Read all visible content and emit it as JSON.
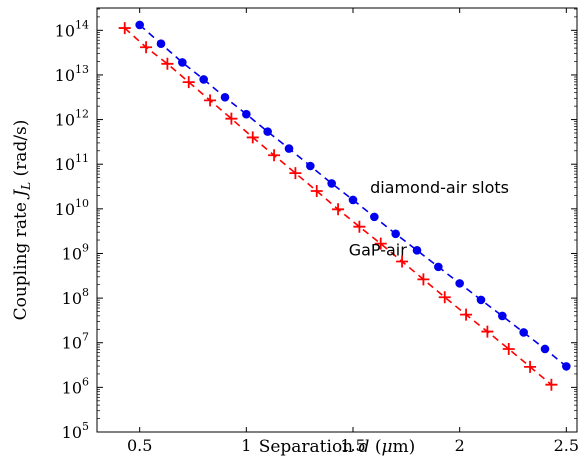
{
  "chart_data": {
    "type": "scatter",
    "x_scale": "linear",
    "y_scale": "log",
    "xlabel": "Separation d (μm)",
    "ylabel": "Coupling rate J_L (rad/s)",
    "xlim": [
      0.3,
      2.55
    ],
    "ylim_log10": [
      5,
      14.5
    ],
    "x_ticks": [
      0.5,
      1,
      1.5,
      2,
      2.5
    ],
    "x_tick_labels": [
      "0.5",
      "1",
      "1.5",
      "2",
      "2.5"
    ],
    "y_ticks_log10": [
      5,
      6,
      7,
      8,
      9,
      10,
      11,
      12,
      13,
      14
    ],
    "grid": false,
    "box": true,
    "series": [
      {
        "name": "diamond-air slots",
        "marker": "dot",
        "line": "dashed",
        "color": "#0000ee",
        "x": [
          0.5,
          0.6,
          0.7,
          0.8,
          0.9,
          1.0,
          1.1,
          1.2,
          1.3,
          1.4,
          1.5,
          1.6,
          1.7,
          1.8,
          1.9,
          2.0,
          2.1,
          2.2,
          2.3,
          2.4,
          2.5
        ],
        "log10_y": [
          14.12,
          13.7,
          13.28,
          12.9,
          12.5,
          12.12,
          11.73,
          11.35,
          10.96,
          10.57,
          10.2,
          9.82,
          9.44,
          9.07,
          8.7,
          8.33,
          7.96,
          7.6,
          7.23,
          6.86,
          6.47
        ]
      },
      {
        "name": "GaP-air",
        "marker": "plus",
        "line": "dashed",
        "color": "#ff0000",
        "x": [
          0.43,
          0.53,
          0.63,
          0.73,
          0.83,
          0.93,
          1.03,
          1.13,
          1.23,
          1.33,
          1.43,
          1.53,
          1.63,
          1.73,
          1.83,
          1.93,
          2.03,
          2.13,
          2.23,
          2.33,
          2.43
        ],
        "log10_y": [
          14.05,
          13.62,
          13.25,
          12.84,
          12.43,
          12.02,
          11.6,
          11.2,
          10.8,
          10.4,
          9.99,
          9.6,
          9.22,
          8.82,
          8.42,
          8.02,
          7.63,
          7.25,
          6.86,
          6.46,
          6.06
        ]
      }
    ],
    "annotations": [
      {
        "text": "diamond-air slots",
        "x": 1.58,
        "log10_y": 10.35
      },
      {
        "text": "GaP-air",
        "x": 1.48,
        "log10_y": 8.95
      }
    ]
  }
}
